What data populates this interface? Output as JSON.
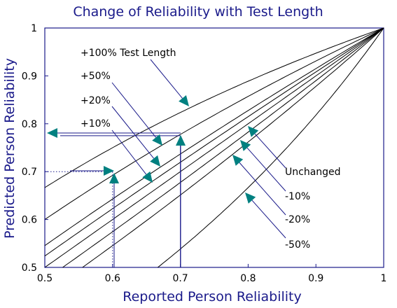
{
  "chart_data": {
    "type": "line",
    "title": "Change of Reliability with Test Length",
    "xlabel": "Reported Person Reliability",
    "ylabel": "Predicted Person Reliability",
    "xlim": [
      0.5,
      1.0
    ],
    "ylim": [
      0.5,
      1.0
    ],
    "x_ticks": [
      "0.5",
      "0.6",
      "0.7",
      "0.8",
      "0.9",
      "1"
    ],
    "y_ticks": [
      "0.5",
      "0.6",
      "0.7",
      "0.8",
      "0.9",
      "1"
    ],
    "grid": false,
    "length_factors": [
      2.0,
      1.5,
      1.2,
      1.1,
      1.0,
      0.9,
      0.8,
      0.5
    ],
    "series_labels": [
      {
        "factor": 2.0,
        "text": "+100% Test Length"
      },
      {
        "factor": 1.5,
        "text": "+50%"
      },
      {
        "factor": 1.2,
        "text": "+20%"
      },
      {
        "factor": 1.1,
        "text": "+10%"
      },
      {
        "factor": 1.0,
        "text": "Unchanged"
      },
      {
        "factor": 0.9,
        "text": "-10%"
      },
      {
        "factor": 0.8,
        "text": "-20%"
      },
      {
        "factor": 0.5,
        "text": "-50%"
      }
    ],
    "example": {
      "reported": 0.7,
      "predicted": 0.775,
      "reference_y": 0.7,
      "reference_x": 0.6
    }
  },
  "colors": {
    "frame": "#1a1a8a",
    "curves": "#000000",
    "guide": "#1a1a8a",
    "arrows": "#008080",
    "text_blue": "#1a1a8a"
  }
}
